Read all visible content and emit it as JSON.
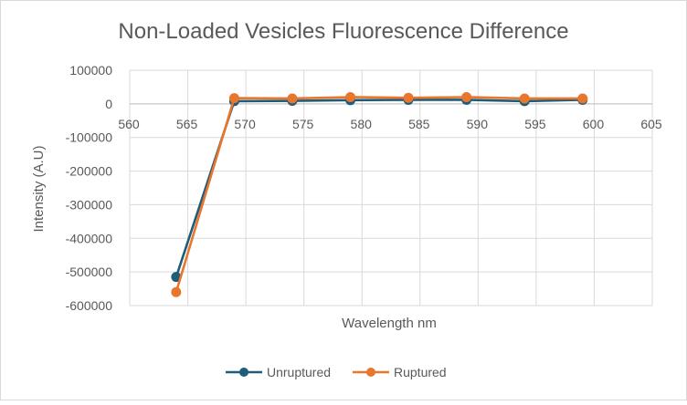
{
  "chart_data": {
    "type": "line",
    "title": "Non-Loaded Vesicles Fluorescence Difference",
    "xlabel": "Wavelength nm",
    "ylabel": "Intensity (A.U)",
    "xlim": [
      560,
      605
    ],
    "ylim": [
      -600000,
      100000
    ],
    "x_ticks": [
      560,
      565,
      570,
      575,
      580,
      585,
      590,
      595,
      600,
      605
    ],
    "y_ticks": [
      100000,
      0,
      -100000,
      -200000,
      -300000,
      -400000,
      -500000,
      -600000
    ],
    "grid": true,
    "legend": "bottom",
    "x": [
      564,
      569,
      574,
      579,
      584,
      589,
      594,
      599
    ],
    "series": [
      {
        "name": "Unruptured",
        "color": "#1f5c7a",
        "values": [
          -515000,
          8000,
          9000,
          11000,
          12000,
          12000,
          8000,
          12000
        ]
      },
      {
        "name": "Ruptured",
        "color": "#e8762d",
        "values": [
          -560000,
          17000,
          16000,
          20000,
          18000,
          20000,
          16000,
          16000
        ]
      }
    ]
  }
}
